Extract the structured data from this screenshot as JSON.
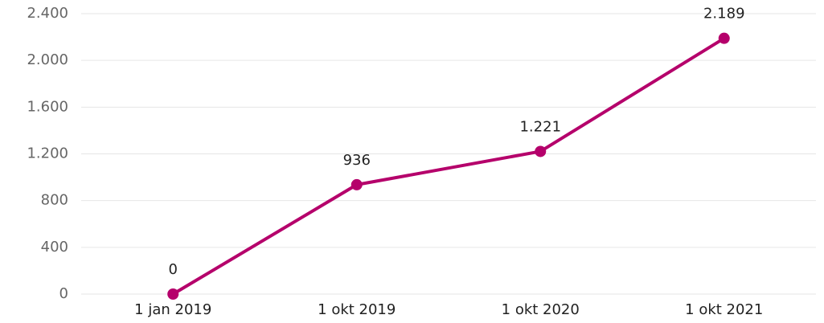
{
  "chart_data": {
    "type": "line",
    "categories": [
      "1 jan 2019",
      "1 okt 2019",
      "1 okt 2020",
      "1 okt 2021"
    ],
    "series": [
      {
        "color": "#b5006b",
        "values": [
          0,
          936,
          1221,
          2189
        ],
        "value_labels": [
          "0",
          "936",
          "1.221",
          "2.189"
        ]
      }
    ],
    "ylim": [
      0,
      2400
    ],
    "yticks": [
      0,
      400,
      800,
      {
        "value": 1200,
        "label": "1.200"
      },
      {
        "value": 1600,
        "label": "1.600"
      },
      {
        "value": 2000,
        "label": "2.000"
      },
      {
        "value": 2400,
        "label": "2.400"
      }
    ],
    "grid": true
  }
}
